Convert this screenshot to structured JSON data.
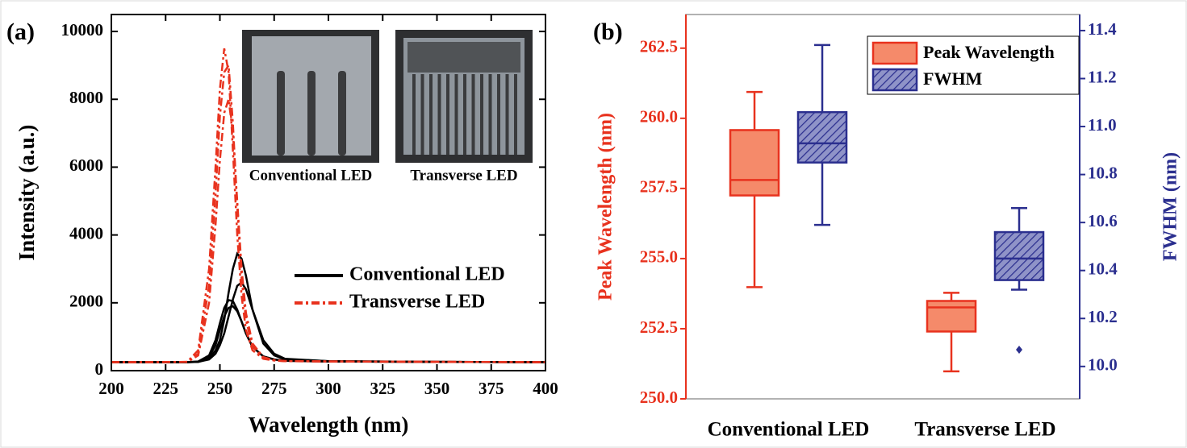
{
  "chart_data": [
    {
      "type": "line",
      "label": "(a)",
      "x_label": "Wavelength (nm)",
      "y_label": "Intensity (a.u.)",
      "xlim": [
        200,
        400
      ],
      "xticks": [
        200,
        225,
        250,
        275,
        300,
        325,
        350,
        375,
        400
      ],
      "ylim": [
        0,
        10500
      ],
      "yticks": [
        0,
        2000,
        4000,
        6000,
        8000,
        10000
      ],
      "legend": "right",
      "insets": [
        {
          "label": "Conventional LED"
        },
        {
          "label": "Transverse LED"
        }
      ],
      "x": [
        200,
        220,
        235,
        240,
        245,
        248,
        250,
        252,
        254,
        256,
        258,
        260,
        262,
        265,
        270,
        275,
        280,
        300,
        350,
        400
      ],
      "series": [
        {
          "name": "Conventional LED",
          "color": "#000000",
          "style": "solid",
          "values": [
            250,
            250,
            250,
            260,
            350,
            600,
            900,
            1500,
            2300,
            3000,
            3450,
            3300,
            2800,
            1800,
            800,
            450,
            330,
            280,
            260,
            250
          ]
        },
        {
          "name": "Conventional LED",
          "color": "#000000",
          "style": "solid",
          "values": [
            250,
            250,
            250,
            260,
            330,
            500,
            750,
            1100,
            1600,
            2100,
            2500,
            2600,
            2400,
            1800,
            900,
            500,
            350,
            280,
            260,
            250
          ]
        },
        {
          "name": "Conventional LED",
          "color": "#000000",
          "style": "solid",
          "values": [
            250,
            250,
            250,
            270,
            450,
            900,
            1400,
            1850,
            2080,
            2050,
            1800,
            1450,
            1100,
            700,
            420,
            330,
            290,
            270,
            260,
            250
          ]
        },
        {
          "name": "Conventional LED",
          "color": "#000000",
          "style": "solid",
          "values": [
            250,
            250,
            250,
            265,
            400,
            750,
            1200,
            1600,
            1850,
            1900,
            1750,
            1450,
            1100,
            700,
            420,
            330,
            290,
            270,
            260,
            250
          ]
        },
        {
          "name": "Transverse LED",
          "color": "#e8321e",
          "style": "dashdot",
          "values": [
            250,
            250,
            260,
            600,
            3000,
            6000,
            8300,
            9500,
            8800,
            6500,
            4000,
            2200,
            1200,
            600,
            350,
            300,
            280,
            270,
            260,
            250
          ]
        },
        {
          "name": "Transverse LED",
          "color": "#e8321e",
          "style": "dashdot",
          "values": [
            250,
            250,
            260,
            500,
            2500,
            5200,
            7500,
            8800,
            9000,
            7300,
            4800,
            2700,
            1500,
            700,
            380,
            300,
            280,
            270,
            260,
            250
          ]
        },
        {
          "name": "Transverse LED",
          "color": "#e8321e",
          "style": "dashdot",
          "values": [
            250,
            250,
            255,
            450,
            2000,
            4300,
            6200,
            7600,
            8000,
            7000,
            5000,
            3000,
            1700,
            800,
            400,
            310,
            285,
            270,
            260,
            250
          ]
        }
      ]
    },
    {
      "type": "box",
      "label": "(b)",
      "categories": [
        "Conventional LED",
        "Transverse LED"
      ],
      "y_label": "Peak Wavelength (nm)",
      "y2_label": "FWHM (nm)",
      "legend": "upper right",
      "ylim": [
        250,
        263.7
      ],
      "yticks": [
        {
          "value": 250,
          "label": "250.0"
        },
        {
          "value": 252.5,
          "label": "252.5"
        },
        {
          "value": 255,
          "label": "255.0"
        },
        {
          "value": 257.5,
          "label": "257.5"
        },
        {
          "value": 260,
          "label": "260.0"
        },
        {
          "value": 262.5,
          "label": "262.5"
        }
      ],
      "y2lim": [
        9.865,
        11.467
      ],
      "y2ticks": [
        {
          "value": 10,
          "label": "10.0"
        },
        {
          "value": 10.2,
          "label": "10.2"
        },
        {
          "value": 10.4,
          "label": "10.4"
        },
        {
          "value": 10.6,
          "label": "10.6"
        },
        {
          "value": 10.8,
          "label": "10.8"
        },
        {
          "value": 11,
          "label": "11.0"
        },
        {
          "value": 11.2,
          "label": "11.2"
        },
        {
          "value": 11.4,
          "label": "11.4"
        }
      ],
      "series": [
        {
          "name": "Peak Wavelength",
          "color": "#e8321e",
          "fill": "#f58a6a",
          "axis": "y",
          "hatch": false,
          "boxes": [
            {
              "min": 253.98,
              "q1": 257.25,
              "median": 257.8,
              "q3": 259.58,
              "max": 260.94,
              "outliers": []
            },
            {
              "min": 250.98,
              "q1": 252.4,
              "median": 253.26,
              "q3": 253.49,
              "max": 253.78,
              "outliers": []
            }
          ]
        },
        {
          "name": "FWHM",
          "color": "#2b2f8f",
          "fill": "#8f93c8",
          "axis": "y2",
          "hatch": true,
          "boxes": [
            {
              "min": 10.59,
              "q1": 10.85,
              "median": 10.93,
              "q3": 11.06,
              "max": 11.34,
              "outliers": []
            },
            {
              "min": 10.32,
              "q1": 10.36,
              "median": 10.45,
              "q3": 10.56,
              "max": 10.66,
              "outliers": [
                10.07
              ]
            }
          ]
        }
      ]
    }
  ]
}
